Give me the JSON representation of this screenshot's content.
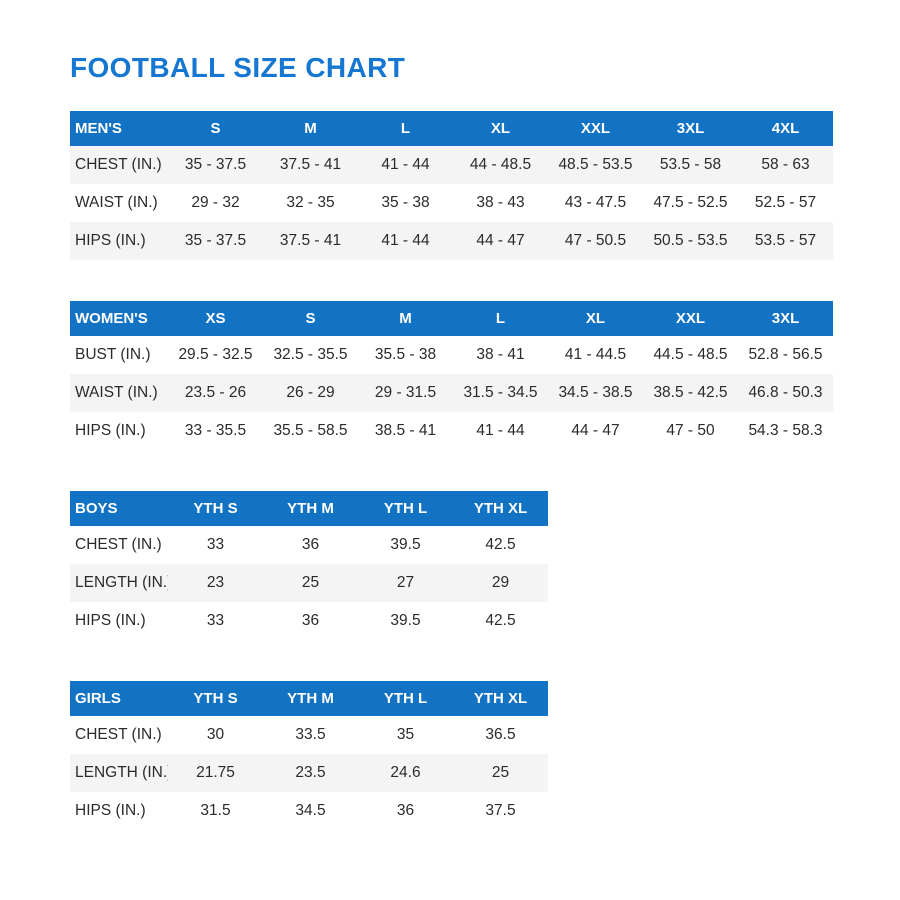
{
  "page_title": "FOOTBALL SIZE CHART",
  "colors": {
    "title_blue": "#1577D1",
    "header_blue": "#1272C3",
    "header_text": "#FFFFFF",
    "stripe_gray": "#F4F4F5",
    "row_white": "#FFFFFF",
    "text_dark": "#2B2B2B"
  },
  "chart_data": [
    {
      "type": "table",
      "name": "mens",
      "title": "MEN'S",
      "columns": [
        "S",
        "M",
        "L",
        "XL",
        "XXL",
        "3XL",
        "4XL"
      ],
      "rows": [
        {
          "label": "CHEST (IN.)",
          "shaded": true,
          "values": [
            "35 - 37.5",
            "37.5 - 41",
            "41 - 44",
            "44 - 48.5",
            "48.5 - 53.5",
            "53.5 - 58",
            "58 - 63"
          ]
        },
        {
          "label": "WAIST (IN.)",
          "shaded": false,
          "values": [
            "29 - 32",
            "32 - 35",
            "35 - 38",
            "38 - 43",
            "43 - 47.5",
            "47.5 - 52.5",
            "52.5 - 57"
          ]
        },
        {
          "label": "HIPS (IN.)",
          "shaded": true,
          "values": [
            "35 - 37.5",
            "37.5 - 41",
            "41 - 44",
            "44 - 47",
            "47 - 50.5",
            "50.5 - 53.5",
            "53.5 - 57"
          ]
        }
      ]
    },
    {
      "type": "table",
      "name": "womens",
      "title": "WOMEN'S",
      "columns": [
        "XS",
        "S",
        "M",
        "L",
        "XL",
        "XXL",
        "3XL"
      ],
      "rows": [
        {
          "label": "BUST (IN.)",
          "shaded": false,
          "values": [
            "29.5 - 32.5",
            "32.5 - 35.5",
            "35.5 - 38",
            "38 - 41",
            "41 - 44.5",
            "44.5 - 48.5",
            "52.8 - 56.5"
          ]
        },
        {
          "label": "WAIST (IN.)",
          "shaded": true,
          "values": [
            "23.5 - 26",
            "26 - 29",
            "29 - 31.5",
            "31.5 - 34.5",
            "34.5 - 38.5",
            "38.5 - 42.5",
            "46.8 - 50.3"
          ]
        },
        {
          "label": "HIPS (IN.)",
          "shaded": false,
          "values": [
            "33 - 35.5",
            "35.5 - 58.5",
            "38.5 - 41",
            "41 - 44",
            "44 - 47",
            "47 - 50",
            "54.3 - 58.3"
          ]
        }
      ]
    },
    {
      "type": "table",
      "name": "boys",
      "title": "BOYS",
      "columns": [
        "YTH S",
        "YTH M",
        "YTH L",
        "YTH XL"
      ],
      "rows": [
        {
          "label": "CHEST (IN.)",
          "shaded": false,
          "values": [
            "33",
            "36",
            "39.5",
            "42.5"
          ]
        },
        {
          "label": "LENGTH (IN.)",
          "shaded": true,
          "values": [
            "23",
            "25",
            "27",
            "29"
          ]
        },
        {
          "label": "HIPS (IN.)",
          "shaded": false,
          "values": [
            "33",
            "36",
            "39.5",
            "42.5"
          ]
        }
      ]
    },
    {
      "type": "table",
      "name": "girls",
      "title": "GIRLS",
      "columns": [
        "YTH S",
        "YTH M",
        "YTH L",
        "YTH XL"
      ],
      "rows": [
        {
          "label": "CHEST (IN.)",
          "shaded": false,
          "values": [
            "30",
            "33.5",
            "35",
            "36.5"
          ]
        },
        {
          "label": "LENGTH (IN.)",
          "shaded": true,
          "values": [
            "21.75",
            "23.5",
            "24.6",
            "25"
          ]
        },
        {
          "label": "HIPS (IN.)",
          "shaded": false,
          "values": [
            "31.5",
            "34.5",
            "36",
            "37.5"
          ]
        }
      ]
    }
  ]
}
